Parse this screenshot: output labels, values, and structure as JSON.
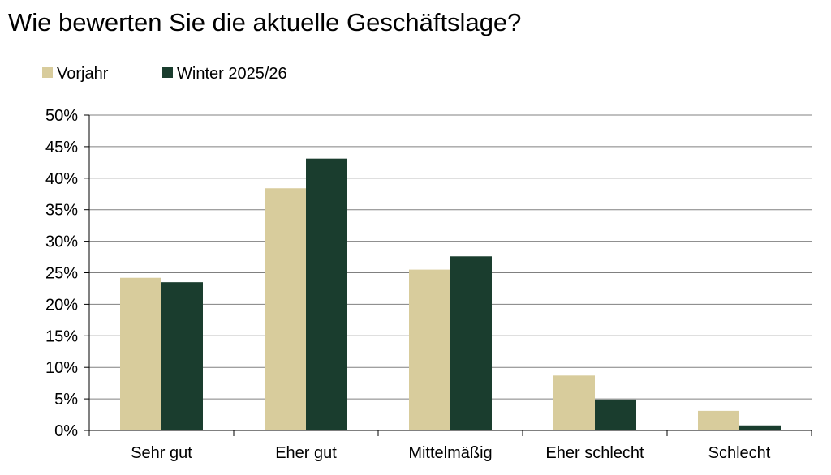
{
  "chart_data": {
    "type": "bar",
    "title": "Wie bewerten Sie die aktuelle Geschäftslage?",
    "categories": [
      "Sehr gut",
      "Eher gut",
      "Mittelmäßig",
      "Eher schlecht",
      "Schlecht"
    ],
    "series": [
      {
        "name": "Vorjahr",
        "color": "#d8cc9c",
        "values": [
          24.2,
          38.4,
          25.5,
          8.7,
          3.1
        ]
      },
      {
        "name": "Winter 2025/26",
        "color": "#1a3d2e",
        "values": [
          23.5,
          43.1,
          27.6,
          4.9,
          0.8
        ]
      }
    ],
    "ylim": [
      0,
      50
    ],
    "yticks": [
      "0%",
      "5%",
      "10%",
      "15%",
      "20%",
      "25%",
      "30%",
      "35%",
      "40%",
      "45%",
      "50%"
    ],
    "grid": true,
    "legend_position": "top-left"
  }
}
